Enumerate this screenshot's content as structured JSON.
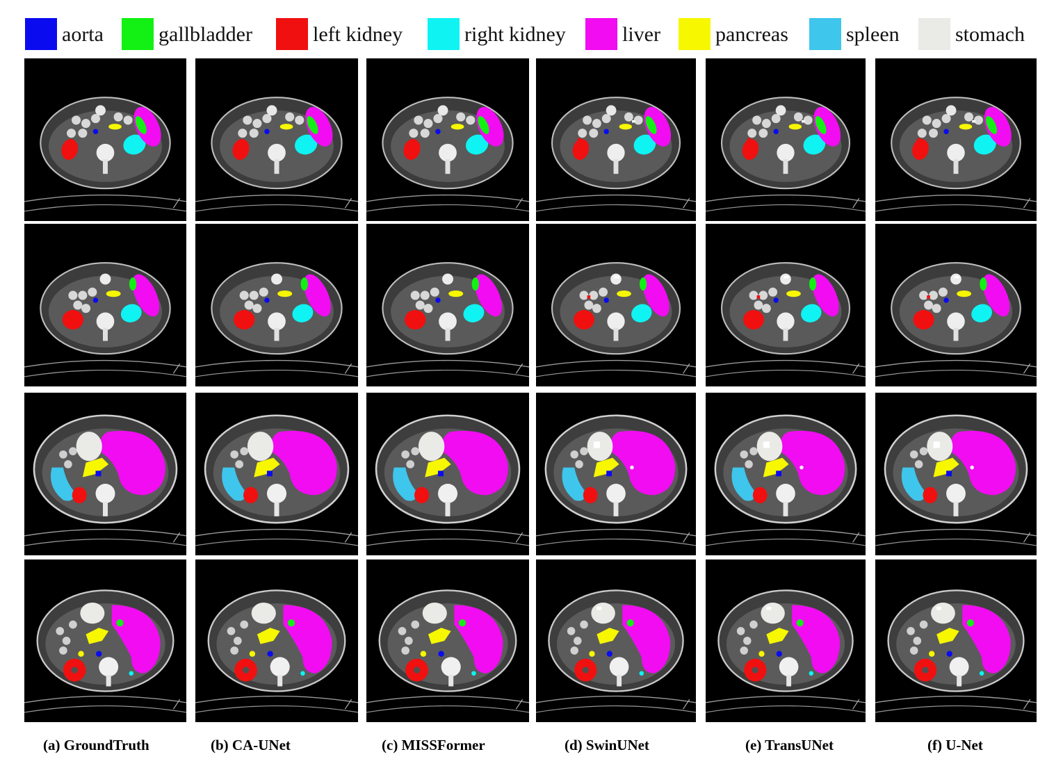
{
  "legend": [
    {
      "label": "aorta",
      "color": "#0b0bf0"
    },
    {
      "label": "gallbladder",
      "color": "#13f013"
    },
    {
      "label": "left kidney",
      "color": "#f01010"
    },
    {
      "label": "right kidney",
      "color": "#0ff3f3"
    },
    {
      "label": "liver",
      "color": "#f10cf1"
    },
    {
      "label": "pancreas",
      "color": "#f7f700"
    },
    {
      "label": "spleen",
      "color": "#3ec6ec"
    },
    {
      "label": "stomach",
      "color": "#eaeae6"
    }
  ],
  "columns": [
    {
      "caption": "(a) GroundTruth"
    },
    {
      "caption": "(b)  CA-UNet"
    },
    {
      "caption": "(c)  MISSFormer"
    },
    {
      "caption": "(d) SwinUNet"
    },
    {
      "caption": "(e) TransUNet"
    },
    {
      "caption": "(f) U-Net"
    }
  ]
}
